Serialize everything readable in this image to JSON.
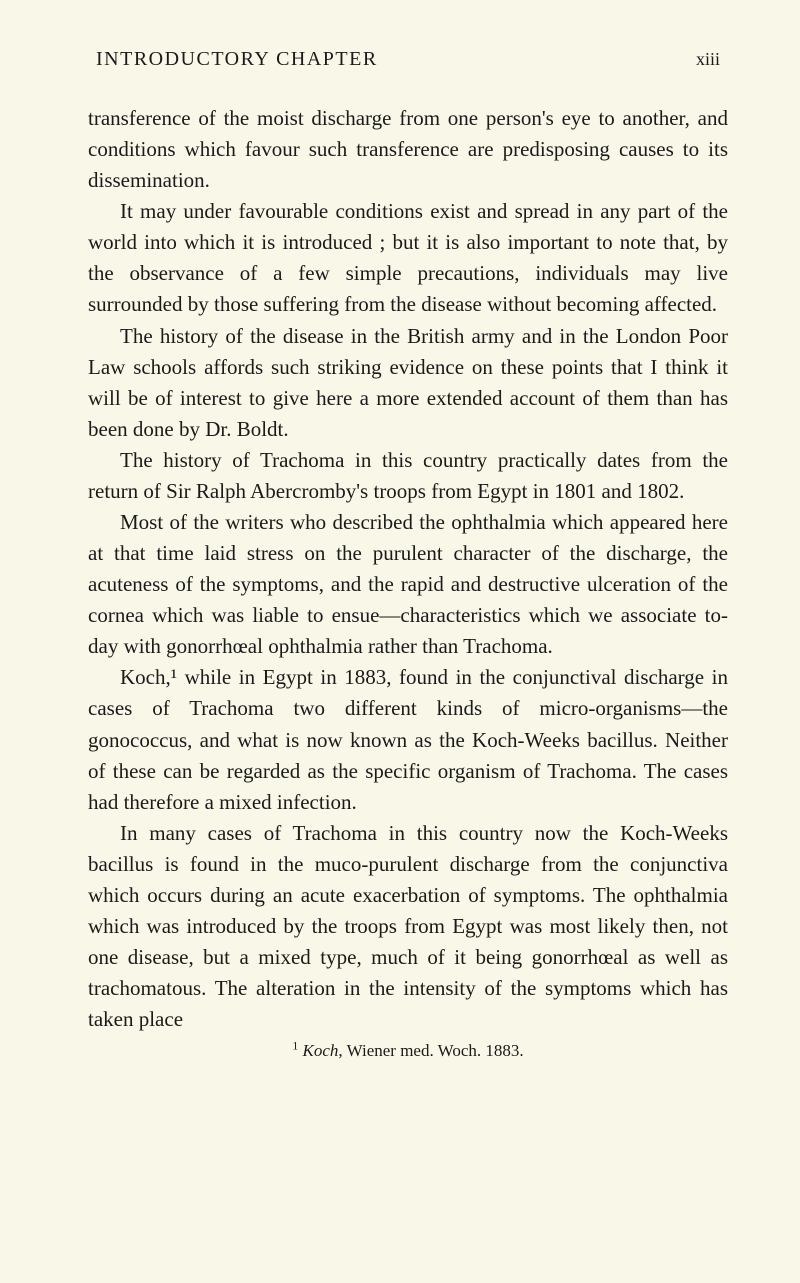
{
  "header": {
    "title": "INTRODUCTORY CHAPTER",
    "page_number": "xiii"
  },
  "paragraphs": [
    {
      "indent": false,
      "text": "transference of the moist discharge from one person's eye to another, and conditions which favour such transference are predisposing causes to its dissemination."
    },
    {
      "indent": true,
      "text": "It may under favourable conditions exist and spread in any part of the world into which it is introduced ; but it is also important to note that, by the observance of a few simple precautions, individuals may live surrounded by those suffering from the disease without becoming affected."
    },
    {
      "indent": true,
      "text": "The history of the disease in the British army and in the London Poor Law schools affords such striking evidence on these points that I think it will be of interest to give here a more extended account of them than has been done by Dr. Boldt."
    },
    {
      "indent": true,
      "text": "The history of Trachoma in this country practically dates from the return of Sir Ralph Abercromby's troops from Egypt in 1801 and 1802."
    },
    {
      "indent": true,
      "text": "Most of the writers who described the ophthalmia which appeared here at that time laid stress on the purulent character of the discharge, the acuteness of the symptoms, and the rapid and destructive ulceration of the cornea which was liable to ensue—characteristics which we associate to-day with gonorrhœal ophthalmia rather than Trachoma."
    },
    {
      "indent": true,
      "text": "Koch,¹ while in Egypt in 1883, found in the conjunctival discharge in cases of Trachoma two different kinds of micro-organisms—the gonococcus, and what is now known as the Koch-Weeks bacillus. Neither of these can be regarded as the specific organism of Trachoma. The cases had therefore a mixed infection."
    },
    {
      "indent": true,
      "text": "In many cases of Trachoma in this country now the Koch-Weeks bacillus is found in the muco-purulent discharge from the conjunctiva which occurs during an acute exacerbation of symptoms. The ophthalmia which was introduced by the troops from Egypt was most likely then, not one disease, but a mixed type, much of it being gonorrhœal as well as trachomatous. The alteration in the intensity of the symptoms which has taken place"
    }
  ],
  "footnote": {
    "marker": "1",
    "author": "Koch",
    "rest": ", Wiener med. Woch. 1883."
  },
  "colors": {
    "background": "#f9f7e8",
    "text": "#1a1a1a"
  },
  "typography": {
    "body_font_size": 21,
    "header_font_size": 20,
    "footnote_font_size": 17,
    "line_height": 1.48
  }
}
